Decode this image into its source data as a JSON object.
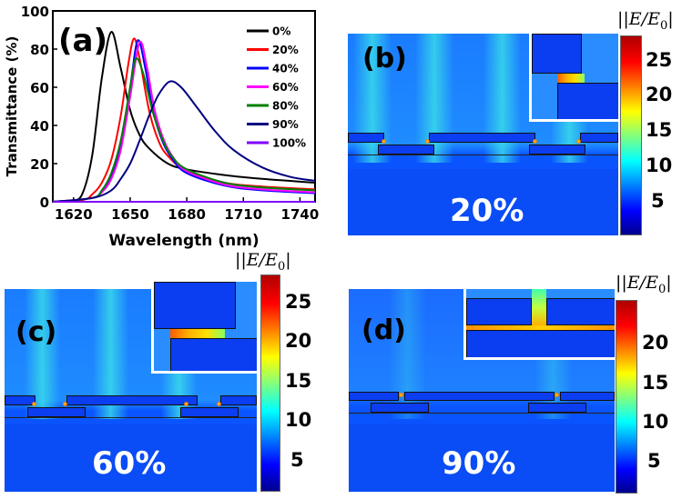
{
  "chart_data": {
    "type": "line",
    "panel_label": "(a)",
    "xlabel": "Wavelength (nm)",
    "ylabel": "Transmittance (%)",
    "xlim": [
      1609,
      1748
    ],
    "ylim": [
      0,
      100
    ],
    "xticks": [
      1620,
      1650,
      1680,
      1710,
      1740
    ],
    "yticks": [
      0,
      20,
      40,
      60,
      80,
      100
    ],
    "legend_position": "top-right",
    "series": [
      {
        "name": "0%",
        "color": "#000000",
        "points": [
          [
            1609,
            0
          ],
          [
            1620,
            0.5
          ],
          [
            1625,
            5
          ],
          [
            1630,
            25
          ],
          [
            1635,
            65
          ],
          [
            1640,
            89
          ],
          [
            1645,
            70
          ],
          [
            1650,
            48
          ],
          [
            1655,
            35
          ],
          [
            1660,
            28
          ],
          [
            1670,
            20
          ],
          [
            1680,
            17
          ],
          [
            1700,
            14
          ],
          [
            1720,
            12
          ],
          [
            1748,
            10
          ]
        ]
      },
      {
        "name": "20%",
        "color": "#ff0000",
        "points": [
          [
            1609,
            0
          ],
          [
            1625,
            1
          ],
          [
            1630,
            4
          ],
          [
            1635,
            10
          ],
          [
            1640,
            22
          ],
          [
            1645,
            45
          ],
          [
            1649,
            72
          ],
          [
            1652,
            85.5
          ],
          [
            1655,
            75
          ],
          [
            1660,
            48
          ],
          [
            1665,
            32
          ],
          [
            1670,
            24
          ],
          [
            1680,
            16
          ],
          [
            1700,
            10
          ],
          [
            1720,
            8
          ],
          [
            1748,
            6.5
          ]
        ]
      },
      {
        "name": "40%",
        "color": "#0000ff",
        "points": [
          [
            1609,
            0
          ],
          [
            1630,
            2
          ],
          [
            1635,
            6
          ],
          [
            1640,
            14
          ],
          [
            1645,
            30
          ],
          [
            1650,
            60
          ],
          [
            1654,
            84.5
          ],
          [
            1658,
            70
          ],
          [
            1662,
            48
          ],
          [
            1667,
            32
          ],
          [
            1672,
            23
          ],
          [
            1680,
            15
          ],
          [
            1700,
            8.5
          ],
          [
            1720,
            6
          ],
          [
            1748,
            4.5
          ]
        ]
      },
      {
        "name": "60%",
        "color": "#ff00ff",
        "points": [
          [
            1609,
            0
          ],
          [
            1630,
            2
          ],
          [
            1635,
            5
          ],
          [
            1640,
            12
          ],
          [
            1645,
            27
          ],
          [
            1650,
            55
          ],
          [
            1655,
            83.5
          ],
          [
            1659,
            70
          ],
          [
            1663,
            48
          ],
          [
            1668,
            32
          ],
          [
            1673,
            23
          ],
          [
            1680,
            16
          ],
          [
            1700,
            9
          ],
          [
            1720,
            6.5
          ],
          [
            1748,
            5
          ]
        ]
      },
      {
        "name": "80%",
        "color": "#008000",
        "points": [
          [
            1609,
            0
          ],
          [
            1630,
            2
          ],
          [
            1635,
            6
          ],
          [
            1640,
            15
          ],
          [
            1645,
            32
          ],
          [
            1650,
            60
          ],
          [
            1653,
            75
          ],
          [
            1657,
            67
          ],
          [
            1662,
            47
          ],
          [
            1667,
            33
          ],
          [
            1672,
            24
          ],
          [
            1680,
            17
          ],
          [
            1700,
            10
          ],
          [
            1720,
            7.5
          ],
          [
            1748,
            6
          ]
        ]
      },
      {
        "name": "90%",
        "color": "#000080",
        "points": [
          [
            1609,
            0
          ],
          [
            1630,
            2
          ],
          [
            1640,
            6
          ],
          [
            1645,
            12
          ],
          [
            1650,
            20
          ],
          [
            1655,
            32
          ],
          [
            1660,
            45
          ],
          [
            1665,
            56
          ],
          [
            1671,
            63
          ],
          [
            1677,
            60
          ],
          [
            1685,
            50
          ],
          [
            1695,
            37
          ],
          [
            1705,
            27
          ],
          [
            1720,
            18
          ],
          [
            1735,
            13
          ],
          [
            1748,
            11
          ]
        ]
      },
      {
        "name": "100%",
        "color": "#8000ff",
        "points": [
          [
            1609,
            0
          ],
          [
            1748,
            0
          ]
        ]
      }
    ]
  },
  "field_maps": [
    {
      "label": "(b)",
      "fill": "20%",
      "colorbar_title": "|E/E",
      "colorbar_sub": "0",
      "colorbar_ticks": [
        "5",
        "10",
        "15",
        "20",
        "25"
      ],
      "colorbar_max": 28
    },
    {
      "label": "(c)",
      "fill": "60%",
      "colorbar_title": "|E/E",
      "colorbar_sub": "0",
      "colorbar_ticks": [
        "5",
        "10",
        "15",
        "20",
        "25"
      ],
      "colorbar_max": 27
    },
    {
      "label": "(d)",
      "fill": "90%",
      "colorbar_title": "|E/E",
      "colorbar_sub": "0",
      "colorbar_ticks": [
        "5",
        "10",
        "15",
        "20"
      ],
      "colorbar_max": 25
    }
  ]
}
